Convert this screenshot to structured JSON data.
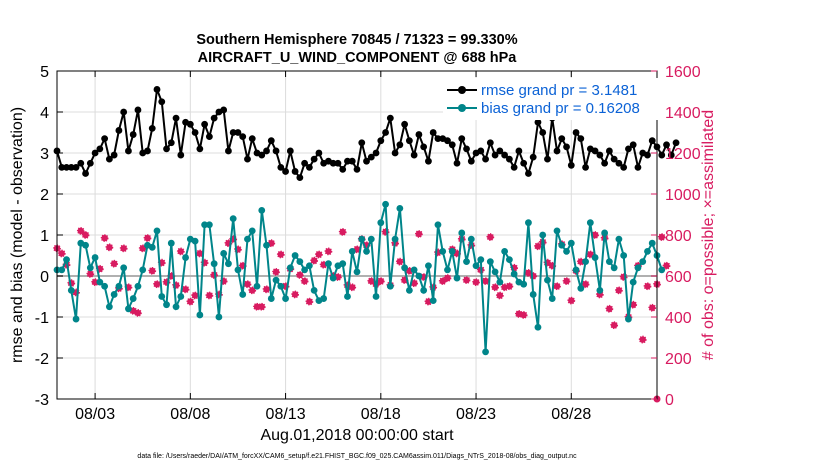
{
  "chart_data": {
    "type": "line",
    "title": "Southern Hemisphere 70845 / 71323 = 99.330%",
    "subtitle": "AIRCRAFT_U_WIND_COMPONENT @ 688 hPa",
    "xlabel": "Aug.01,2018 00:00:00 start",
    "ylabel": "rmse and bias (model - observation)",
    "y2label": "# of obs: o=possible; ×=assimilated",
    "footnote": "data file: /Users/raeder/DAI/ATM_forcXX/CAM6_setup/f.e21.FHIST_BGC.f09_025.CAM6assim.011/Diags_NTrS_2018-08/obs_diag_output.nc",
    "xlim": [
      1,
      32.5
    ],
    "ylim": [
      -3,
      5
    ],
    "y2lim": [
      0,
      1600
    ],
    "grid": true,
    "legend_position": "top-right",
    "xticks": [
      3,
      8,
      13,
      18,
      23,
      28
    ],
    "xtick_labels": [
      "08/03",
      "08/08",
      "08/13",
      "08/18",
      "08/23",
      "08/28"
    ],
    "yticks": [
      -3,
      -2,
      -1,
      0,
      1,
      2,
      3,
      4,
      5
    ],
    "ytick_labels": [
      "-3",
      "-2",
      "-1",
      "0",
      "1",
      "2",
      "3",
      "4",
      "5"
    ],
    "y2ticks": [
      0,
      200,
      400,
      600,
      800,
      1000,
      1200,
      1400,
      1600
    ],
    "y2tick_labels": [
      "0",
      "200",
      "400",
      "600",
      "800",
      "1000",
      "1200",
      "1400",
      "1600"
    ],
    "colors": {
      "rmse": "#000000",
      "bias": "#00858a",
      "obs": "#d81b60",
      "zero_line": "#b0b0b0",
      "legend_text": "#0b62d6"
    },
    "series": [
      {
        "name": "rmse grand pr = 3.1481",
        "axis": "left",
        "x_start": 1.0,
        "x_step": 0.25,
        "values": [
          3.05,
          2.65,
          2.65,
          2.65,
          2.65,
          2.75,
          2.5,
          2.75,
          3.0,
          3.1,
          3.35,
          2.85,
          2.95,
          3.55,
          4.0,
          3.05,
          3.45,
          4.05,
          3.0,
          3.05,
          3.6,
          4.55,
          4.25,
          3.1,
          3.25,
          3.85,
          2.95,
          3.75,
          3.7,
          3.5,
          3.1,
          3.7,
          3.4,
          3.85,
          4.0,
          4.05,
          3.05,
          3.5,
          3.5,
          3.4,
          2.85,
          3.35,
          3.0,
          2.95,
          3.05,
          3.3,
          3.05,
          2.65,
          2.55,
          3.05,
          2.55,
          2.4,
          2.75,
          2.65,
          2.85,
          3.0,
          2.75,
          2.8,
          2.75,
          2.75,
          2.6,
          2.8,
          2.8,
          2.6,
          3.25,
          2.8,
          2.9,
          3.0,
          3.3,
          3.5,
          3.85,
          3.0,
          3.2,
          3.7,
          3.3,
          2.95,
          3.45,
          3.15,
          2.8,
          3.5,
          3.35,
          3.35,
          3.3,
          3.2,
          2.75,
          3.35,
          3.1,
          2.8,
          3.0,
          3.05,
          2.85,
          3.25,
          2.95,
          3.05,
          2.95,
          2.85,
          2.65,
          3.05,
          2.75,
          2.5,
          2.9,
          3.75,
          3.5,
          2.85,
          3.85,
          3.05,
          3.35,
          3.15,
          2.7,
          3.5,
          3.35,
          2.65,
          3.1,
          3.05,
          2.95,
          2.75,
          3.05,
          2.85,
          2.75,
          2.65,
          3.1,
          3.2,
          2.65,
          3.0,
          2.95,
          3.3,
          3.15,
          2.95,
          3.2,
          2.95,
          3.25
        ]
      },
      {
        "name": "bias grand pr = 0.16208",
        "axis": "left",
        "x_start": 1.0,
        "x_step": 0.25,
        "values": [
          0.15,
          0.15,
          0.4,
          -0.35,
          -1.05,
          0.8,
          0.75,
          0.2,
          0.45,
          -0.15,
          -0.25,
          -0.75,
          -0.45,
          -0.25,
          0.2,
          -0.8,
          -0.55,
          -0.25,
          0.15,
          0.75,
          0.7,
          1.1,
          -0.5,
          -0.7,
          0.8,
          -0.75,
          -0.5,
          0.45,
          0.9,
          0.85,
          -0.95,
          1.25,
          1.25,
          0.3,
          -1.0,
          0.55,
          0.3,
          1.4,
          0.15,
          -0.45,
          0.9,
          1.1,
          -0.25,
          1.6,
          0.75,
          -0.55,
          -0.1,
          -0.25,
          -0.55,
          0.2,
          0.5,
          0.35,
          0.15,
          0.25,
          -0.35,
          -0.6,
          -0.55,
          0.3,
          -0.05,
          0.25,
          0.3,
          -0.5,
          0.6,
          0.1,
          0.9,
          0.6,
          0.9,
          -0.5,
          1.3,
          1.75,
          -0.25,
          0.9,
          1.65,
          0.2,
          -0.35,
          0.15,
          0.0,
          -0.35,
          0.25,
          -0.6,
          1.25,
          0.6,
          0.15,
          0.6,
          -0.05,
          1.05,
          0.35,
          0.9,
          0.25,
          0.4,
          -1.85,
          0.35,
          0.1,
          -0.15,
          0.6,
          0.4,
          0.05,
          -0.15,
          -0.2,
          1.3,
          -0.45,
          -1.25,
          1.0,
          -0.1,
          -0.55,
          1.1,
          0.75,
          0.6,
          0.8,
          0.15,
          -0.3,
          0.35,
          1.3,
          0.45,
          -0.35,
          1.05,
          0.35,
          0.2,
          0.9,
          0.5,
          -1.05,
          -0.15,
          0.2,
          0.35,
          0.6,
          0.8,
          0.5,
          0.15
        ]
      },
      {
        "name": "# of obs assimilated",
        "axis": "right",
        "x_start": 1.0,
        "x_step": 0.25,
        "values": [
          735,
          710,
          655,
          565,
          520,
          820,
          800,
          610,
          570,
          635,
          785,
          740,
          660,
          540,
          735,
          545,
          430,
          420,
          735,
          785,
          625,
          560,
          665,
          570,
          600,
          555,
          720,
          535,
          475,
          505,
          710,
          665,
          505,
          605,
          510,
          575,
          760,
          780,
          730,
          650,
          560,
          530,
          450,
          450,
          535,
          760,
          620,
          705,
          550,
          635,
          510,
          605,
          575,
          475,
          675,
          705,
          655,
          720,
          600,
          595,
          815,
          555,
          545,
          730,
          780,
          750,
          575,
          560,
          575,
          815,
          555,
          760,
          670,
          580,
          625,
          565,
          805,
          595,
          475,
          545,
          715,
          575,
          590,
          730,
          710,
          780,
          580,
          750,
          570,
          630,
          575,
          790,
          545,
          505,
          545,
          550,
          640,
          415,
          410,
          615,
          600,
          745,
          765,
          665,
          650,
          550,
          755,
          575,
          480,
          625,
          670,
          560,
          705,
          800,
          510,
          785,
          440,
          360,
          530,
          595,
          400,
          460,
          650,
          290,
          550,
          445,
          560,
          790,
          650
        ]
      }
    ]
  }
}
